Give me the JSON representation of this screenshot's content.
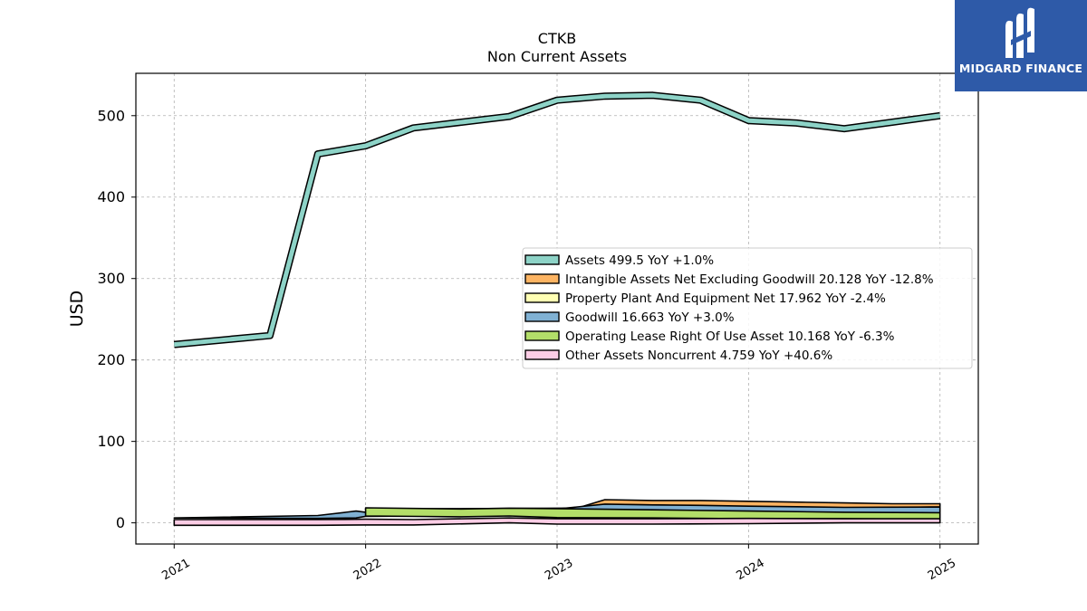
{
  "chart_data": {
    "type": "area",
    "title": "CTKB",
    "subtitle": "Non Current  Assets",
    "xlabel": "",
    "ylabel": "USD",
    "xlim": [
      2020.8,
      2025.2
    ],
    "ylim": [
      -26,
      552
    ],
    "yticks": [
      0,
      100,
      200,
      300,
      400,
      500
    ],
    "xticks": [
      2021,
      2022,
      2023,
      2024,
      2025
    ],
    "xtick_labels": [
      "2021",
      "2022",
      "2023",
      "2024",
      "2025"
    ],
    "grid": true,
    "legend_position": "center-right",
    "series": [
      {
        "name": "Assets",
        "legend": "Assets  499.5 YoY +1.0%",
        "color": "#8dd3c7",
        "kind": "line",
        "x": [
          2021.0,
          2021.5,
          2021.75,
          2022.0,
          2022.25,
          2022.5,
          2022.75,
          2023.0,
          2023.25,
          2023.5,
          2023.75,
          2024.0,
          2024.25,
          2024.5,
          2024.75,
          2025.0
        ],
        "values": [
          219,
          230,
          453,
          463,
          485,
          492,
          499,
          519,
          524,
          525,
          519,
          494,
          491,
          484,
          492,
          500
        ]
      },
      {
        "name": "Intangible Assets Net Excluding Goodwill",
        "legend": "Intangible Assets Net Excluding Goodwill  20.128 YoY -12.8%",
        "color": "#fdb462",
        "kind": "band",
        "x": [
          2023.0,
          2023.1,
          2023.25,
          2023.5,
          2023.75,
          2024.0,
          2024.25,
          2024.5,
          2024.75,
          2025.0
        ],
        "upper": [
          17.5,
          17.8,
          28.5,
          27.5,
          27.5,
          26.5,
          25.5,
          24.5,
          23.5,
          23.5
        ],
        "lower": [
          17.5,
          17.8,
          22.5,
          22.0,
          20.5,
          19.5,
          19.0,
          18.5,
          19.0,
          19.5
        ]
      },
      {
        "name": "Property Plant And Equipment Net",
        "legend": "Property Plant And Equipment Net  17.962 YoY -2.4%",
        "color": "#ffffb3",
        "kind": "band",
        "x": [
          2022.0,
          2022.5,
          2023.0,
          2023.5,
          2024.0,
          2024.5,
          2025.0
        ],
        "upper": [
          17.0,
          17.5,
          18.0,
          18.5,
          19.0,
          18.5,
          18.0
        ],
        "lower": [
          16.5,
          17.0,
          17.5,
          18.0,
          18.5,
          18.0,
          17.5
        ]
      },
      {
        "name": "Goodwill",
        "legend": "Goodwill  16.663 YoY +3.0%",
        "color": "#80b1d3",
        "kind": "band",
        "x": [
          2021.0,
          2021.75,
          2021.95,
          2022.0,
          2022.5,
          2023.0,
          2023.25,
          2023.5,
          2023.75,
          2024.0,
          2024.5,
          2025.0
        ],
        "upper": [
          6.0,
          9.0,
          14.5,
          13.0,
          12.0,
          17.0,
          23.0,
          22.0,
          21.5,
          20.5,
          19.0,
          19.5
        ],
        "lower": [
          6.0,
          5.5,
          6.0,
          8.0,
          8.5,
          9.0,
          9.5,
          10.0,
          10.5,
          10.5,
          11.0,
          11.5
        ]
      },
      {
        "name": "Operating Lease Right Of Use Asset",
        "legend": "Operating Lease Right Of Use Asset  10.168 YoY -6.3%",
        "color": "#b3de69",
        "kind": "band",
        "x": [
          2022.0,
          2022.5,
          2022.75,
          2023.0,
          2023.5,
          2024.0,
          2024.5,
          2025.0
        ],
        "upper": [
          18.5,
          17.0,
          18.0,
          17.5,
          16.0,
          14.5,
          13.0,
          12.5
        ],
        "lower": [
          8.5,
          7.5,
          8.5,
          6.5,
          6.0,
          5.0,
          5.0,
          4.5
        ]
      },
      {
        "name": "Other Assets Noncurrent",
        "legend": "Other Assets Noncurrent  4.759 YoY +40.6%",
        "color": "#fccde5",
        "kind": "band",
        "x": [
          2021.0,
          2021.75,
          2022.0,
          2022.25,
          2022.75,
          2023.0,
          2023.5,
          2024.0,
          2024.5,
          2025.0
        ],
        "upper": [
          4.0,
          4.0,
          4.5,
          4.0,
          6.0,
          5.0,
          5.0,
          5.5,
          5.0,
          5.0
        ],
        "lower": [
          -3.0,
          -3.0,
          -2.5,
          -2.5,
          0.0,
          -1.5,
          -1.5,
          -1.0,
          0.0,
          0.0
        ]
      }
    ]
  },
  "logo": {
    "text": "MIDGARD FINANCE",
    "color": "#2e5aa8"
  }
}
